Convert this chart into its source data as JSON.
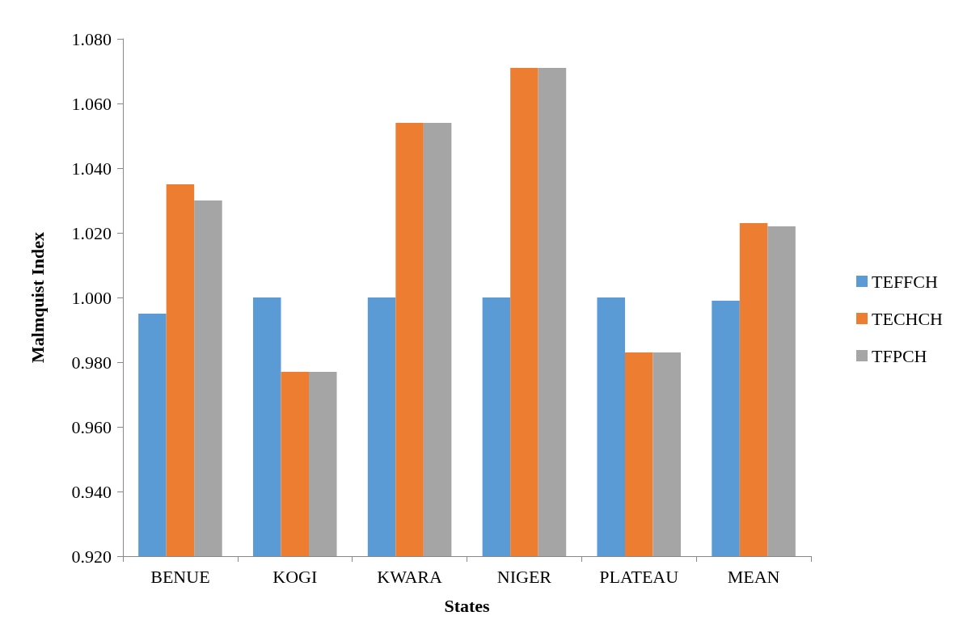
{
  "chart_data": {
    "type": "bar",
    "xlabel": "States",
    "ylabel": "Malmquist Index",
    "categories": [
      "BENUE",
      "KOGI",
      "KWARA",
      "NIGER",
      "PLATEAU",
      "MEAN"
    ],
    "series": [
      {
        "name": "TEFFCH",
        "color": "#5b9bd5",
        "values": [
          0.995,
          1.0,
          1.0,
          1.0,
          1.0,
          0.999
        ]
      },
      {
        "name": "TECHCH",
        "color": "#ed7d31",
        "values": [
          1.035,
          0.977,
          1.054,
          1.071,
          0.983,
          1.023
        ]
      },
      {
        "name": "TFPCH",
        "color": "#a5a5a5",
        "values": [
          1.03,
          0.977,
          1.054,
          1.071,
          0.983,
          1.022
        ]
      }
    ],
    "ylim": [
      0.92,
      1.08
    ],
    "yticks": [
      {
        "value": 0.92,
        "label": "0.920"
      },
      {
        "value": 0.94,
        "label": "0.940"
      },
      {
        "value": 0.96,
        "label": "0.960"
      },
      {
        "value": 0.98,
        "label": "0.980"
      },
      {
        "value": 1.0,
        "label": "1.000"
      },
      {
        "value": 1.02,
        "label": "1.020"
      },
      {
        "value": 1.04,
        "label": "1.040"
      },
      {
        "value": 1.06,
        "label": "1.060"
      },
      {
        "value": 1.08,
        "label": "1.080"
      }
    ],
    "grid": false,
    "legend": "right"
  }
}
